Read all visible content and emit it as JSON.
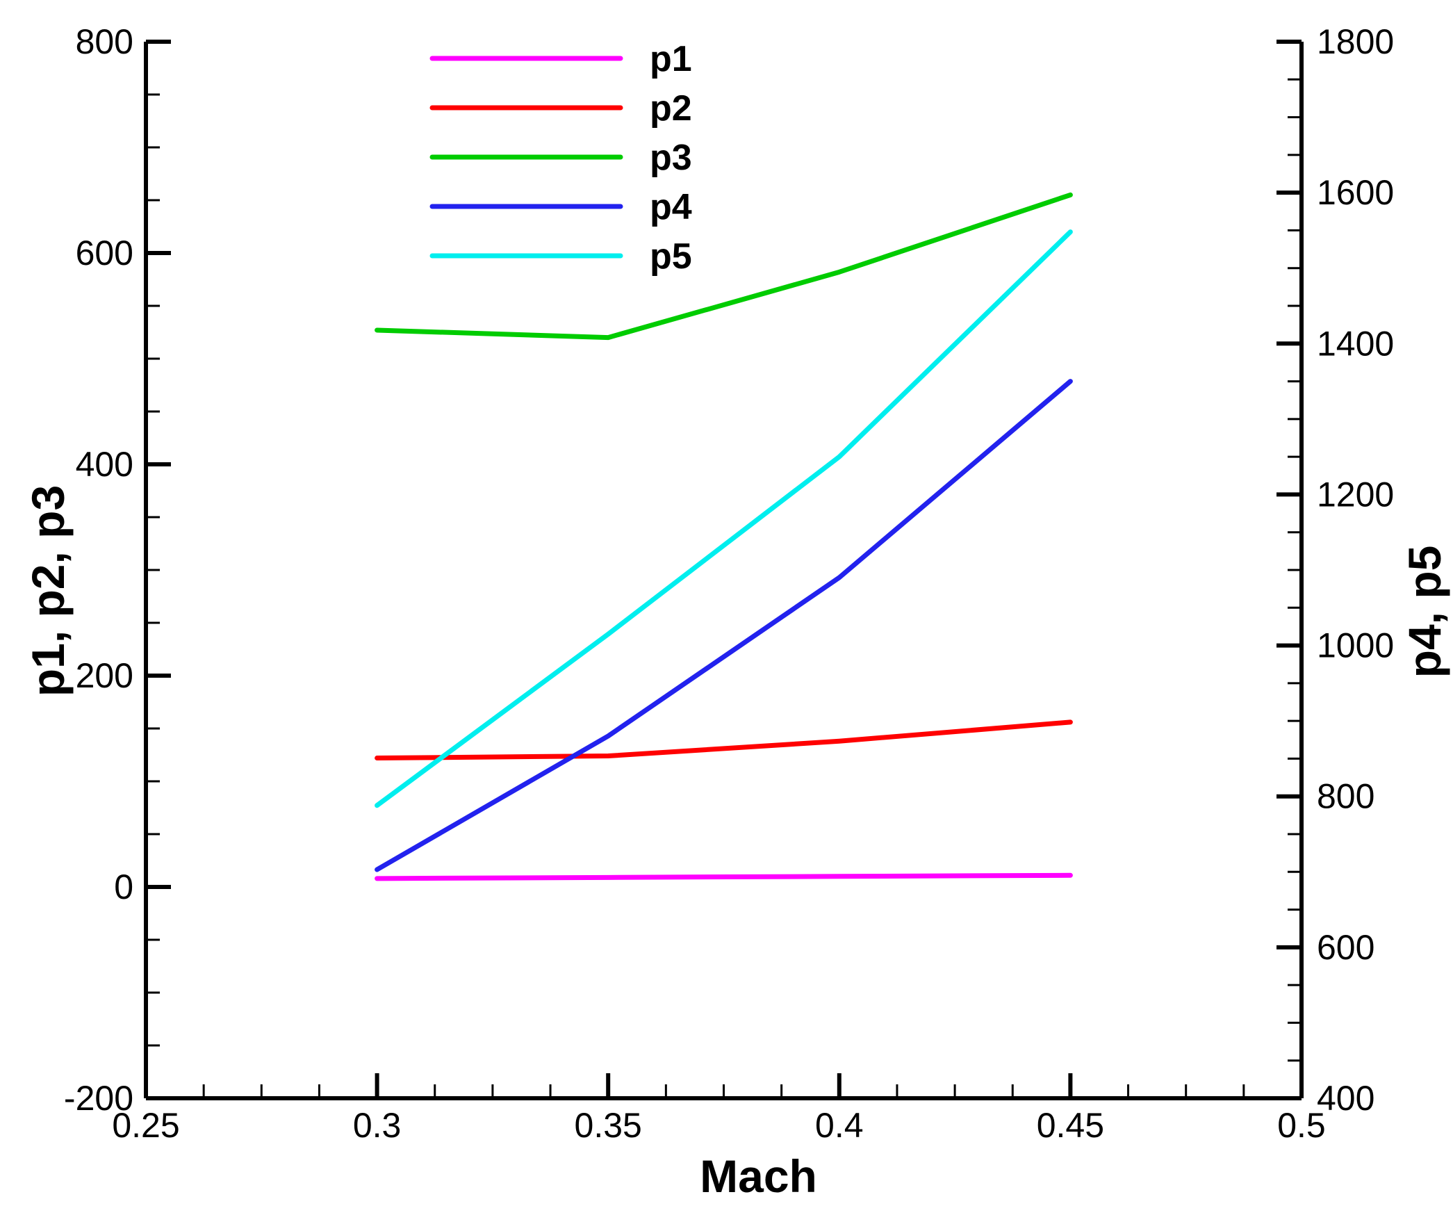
{
  "chart_data": {
    "type": "line",
    "xlabel": "Mach",
    "ylabel_left": "p1, p2, p3",
    "ylabel_right": "p4, p5",
    "xlim": [
      0.25,
      0.5
    ],
    "ylim_left": [
      -200,
      800
    ],
    "ylim_right": [
      400,
      1800
    ],
    "x_ticks": [
      "0.25",
      "0.3",
      "0.35",
      "0.4",
      "0.45",
      "0.5"
    ],
    "y_left_ticks": [
      "-200",
      "0",
      "200",
      "400",
      "600",
      "800"
    ],
    "y_right_ticks": [
      "400",
      "600",
      "800",
      "1000",
      "1200",
      "1400",
      "1600",
      "1800"
    ],
    "grid": false,
    "legend_position": "top-center",
    "x": [
      0.3,
      0.35,
      0.4,
      0.45
    ],
    "series": [
      {
        "name": "p1",
        "axis": "left",
        "color": "#ff00ff",
        "values": [
          8,
          9,
          10,
          11
        ]
      },
      {
        "name": "p2",
        "axis": "left",
        "color": "#ff0000",
        "values": [
          122,
          124,
          138,
          156
        ]
      },
      {
        "name": "p3",
        "axis": "left",
        "color": "#00cc00",
        "values": [
          527,
          520,
          582,
          655
        ]
      },
      {
        "name": "p4",
        "axis": "right",
        "color": "#2222ee",
        "values": [
          703,
          880,
          1090,
          1350
        ]
      },
      {
        "name": "p5",
        "axis": "right",
        "color": "#00eeee",
        "values": [
          788,
          1015,
          1250,
          1548
        ]
      }
    ]
  }
}
